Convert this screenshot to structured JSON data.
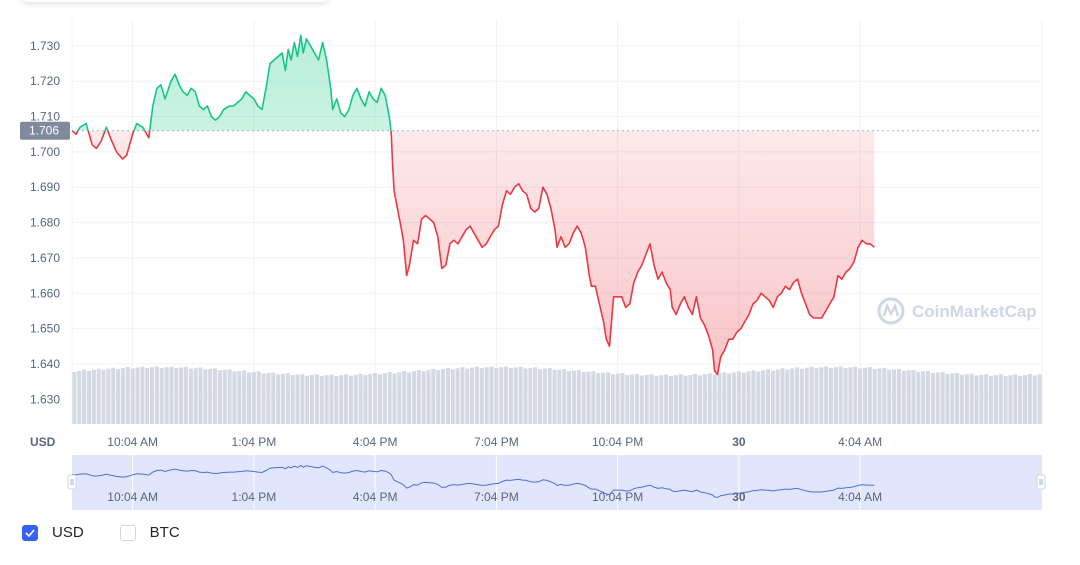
{
  "chart_data": {
    "type": "area",
    "y_ticks": [
      "1.730",
      "1.720",
      "1.710",
      "1.700",
      "1.690",
      "1.680",
      "1.670",
      "1.660",
      "1.650",
      "1.640",
      "1.630"
    ],
    "y_tick_values": [
      1.73,
      1.72,
      1.71,
      1.7,
      1.69,
      1.68,
      1.67,
      1.66,
      1.65,
      1.64,
      1.63
    ],
    "ylim": [
      1.623,
      1.7345
    ],
    "baseline": 1.706,
    "baseline_label": "1.706",
    "unit_label": "USD",
    "x_ticks": [
      {
        "label": "10:04 AM",
        "t": 1.5,
        "bold": false
      },
      {
        "label": "1:04 PM",
        "t": 4.5,
        "bold": false
      },
      {
        "label": "4:04 PM",
        "t": 7.5,
        "bold": false
      },
      {
        "label": "7:04 PM",
        "t": 10.5,
        "bold": false
      },
      {
        "label": "10:04 PM",
        "t": 13.5,
        "bold": false
      },
      {
        "label": "30",
        "t": 16.5,
        "bold": true
      },
      {
        "label": "4:04 AM",
        "t": 19.5,
        "bold": false
      }
    ],
    "xlim": [
      0,
      24
    ],
    "series": [
      {
        "up_color": "#16c784",
        "down_color": "#ea3943",
        "points": [
          [
            0.0,
            1.706
          ],
          [
            0.1,
            1.705
          ],
          [
            0.2,
            1.707
          ],
          [
            0.35,
            1.708
          ],
          [
            0.5,
            1.702
          ],
          [
            0.6,
            1.701
          ],
          [
            0.72,
            1.703
          ],
          [
            0.85,
            1.707
          ],
          [
            0.95,
            1.704
          ],
          [
            1.1,
            1.7
          ],
          [
            1.25,
            1.698
          ],
          [
            1.35,
            1.699
          ],
          [
            1.5,
            1.705
          ],
          [
            1.6,
            1.708
          ],
          [
            1.75,
            1.707
          ],
          [
            1.9,
            1.704
          ],
          [
            2.0,
            1.713
          ],
          [
            2.1,
            1.718
          ],
          [
            2.2,
            1.719
          ],
          [
            2.3,
            1.715
          ],
          [
            2.45,
            1.72
          ],
          [
            2.55,
            1.722
          ],
          [
            2.65,
            1.719
          ],
          [
            2.75,
            1.717
          ],
          [
            2.85,
            1.716
          ],
          [
            2.95,
            1.718
          ],
          [
            3.05,
            1.717
          ],
          [
            3.15,
            1.713
          ],
          [
            3.25,
            1.712
          ],
          [
            3.35,
            1.713
          ],
          [
            3.45,
            1.71
          ],
          [
            3.55,
            1.709
          ],
          [
            3.65,
            1.71
          ],
          [
            3.75,
            1.712
          ],
          [
            3.9,
            1.713
          ],
          [
            4.0,
            1.713
          ],
          [
            4.1,
            1.714
          ],
          [
            4.2,
            1.715
          ],
          [
            4.3,
            1.717
          ],
          [
            4.4,
            1.716
          ],
          [
            4.5,
            1.715
          ],
          [
            4.6,
            1.713
          ],
          [
            4.7,
            1.712
          ],
          [
            4.8,
            1.718
          ],
          [
            4.9,
            1.725
          ],
          [
            5.0,
            1.726
          ],
          [
            5.1,
            1.727
          ],
          [
            5.2,
            1.728
          ],
          [
            5.28,
            1.723
          ],
          [
            5.35,
            1.729
          ],
          [
            5.42,
            1.726
          ],
          [
            5.5,
            1.731
          ],
          [
            5.58,
            1.727
          ],
          [
            5.66,
            1.733
          ],
          [
            5.72,
            1.728
          ],
          [
            5.8,
            1.732
          ],
          [
            5.9,
            1.73
          ],
          [
            6.0,
            1.728
          ],
          [
            6.1,
            1.726
          ],
          [
            6.2,
            1.731
          ],
          [
            6.3,
            1.726
          ],
          [
            6.4,
            1.718
          ],
          [
            6.45,
            1.712
          ],
          [
            6.55,
            1.715
          ],
          [
            6.65,
            1.711
          ],
          [
            6.75,
            1.71
          ],
          [
            6.85,
            1.712
          ],
          [
            6.95,
            1.716
          ],
          [
            7.05,
            1.718
          ],
          [
            7.15,
            1.715
          ],
          [
            7.25,
            1.713
          ],
          [
            7.35,
            1.717
          ],
          [
            7.45,
            1.715
          ],
          [
            7.55,
            1.714
          ],
          [
            7.65,
            1.718
          ],
          [
            7.75,
            1.716
          ],
          [
            7.85,
            1.71
          ],
          [
            7.9,
            1.705
          ],
          [
            7.93,
            1.697
          ],
          [
            7.97,
            1.689
          ],
          [
            8.05,
            1.684
          ],
          [
            8.12,
            1.68
          ],
          [
            8.2,
            1.675
          ],
          [
            8.28,
            1.665
          ],
          [
            8.35,
            1.668
          ],
          [
            8.45,
            1.675
          ],
          [
            8.55,
            1.674
          ],
          [
            8.65,
            1.681
          ],
          [
            8.75,
            1.682
          ],
          [
            8.85,
            1.681
          ],
          [
            8.95,
            1.68
          ],
          [
            9.05,
            1.676
          ],
          [
            9.15,
            1.667
          ],
          [
            9.25,
            1.668
          ],
          [
            9.35,
            1.674
          ],
          [
            9.45,
            1.675
          ],
          [
            9.55,
            1.674
          ],
          [
            9.65,
            1.676
          ],
          [
            9.75,
            1.678
          ],
          [
            9.85,
            1.679
          ],
          [
            9.95,
            1.677
          ],
          [
            10.05,
            1.675
          ],
          [
            10.15,
            1.673
          ],
          [
            10.25,
            1.674
          ],
          [
            10.35,
            1.676
          ],
          [
            10.45,
            1.678
          ],
          [
            10.55,
            1.679
          ],
          [
            10.65,
            1.685
          ],
          [
            10.75,
            1.689
          ],
          [
            10.85,
            1.688
          ],
          [
            10.95,
            1.69
          ],
          [
            11.05,
            1.691
          ],
          [
            11.15,
            1.689
          ],
          [
            11.25,
            1.688
          ],
          [
            11.35,
            1.684
          ],
          [
            11.45,
            1.683
          ],
          [
            11.55,
            1.684
          ],
          [
            11.65,
            1.69
          ],
          [
            11.75,
            1.688
          ],
          [
            11.85,
            1.684
          ],
          [
            11.95,
            1.678
          ],
          [
            12.0,
            1.673
          ],
          [
            12.1,
            1.676
          ],
          [
            12.2,
            1.673
          ],
          [
            12.3,
            1.674
          ],
          [
            12.4,
            1.677
          ],
          [
            12.5,
            1.679
          ],
          [
            12.6,
            1.677
          ],
          [
            12.7,
            1.673
          ],
          [
            12.8,
            1.665
          ],
          [
            12.85,
            1.662
          ],
          [
            12.95,
            1.662
          ],
          [
            13.05,
            1.657
          ],
          [
            13.15,
            1.652
          ],
          [
            13.22,
            1.647
          ],
          [
            13.3,
            1.645
          ],
          [
            13.4,
            1.659
          ],
          [
            13.5,
            1.659
          ],
          [
            13.6,
            1.659
          ],
          [
            13.7,
            1.656
          ],
          [
            13.8,
            1.657
          ],
          [
            13.9,
            1.663
          ],
          [
            14.0,
            1.666
          ],
          [
            14.1,
            1.668
          ],
          [
            14.2,
            1.671
          ],
          [
            14.3,
            1.674
          ],
          [
            14.4,
            1.668
          ],
          [
            14.5,
            1.664
          ],
          [
            14.6,
            1.666
          ],
          [
            14.7,
            1.663
          ],
          [
            14.8,
            1.661
          ],
          [
            14.85,
            1.656
          ],
          [
            14.95,
            1.654
          ],
          [
            15.05,
            1.657
          ],
          [
            15.15,
            1.659
          ],
          [
            15.25,
            1.656
          ],
          [
            15.35,
            1.654
          ],
          [
            15.45,
            1.659
          ],
          [
            15.55,
            1.653
          ],
          [
            15.65,
            1.651
          ],
          [
            15.75,
            1.648
          ],
          [
            15.85,
            1.644
          ],
          [
            15.9,
            1.638
          ],
          [
            15.97,
            1.637
          ],
          [
            16.05,
            1.642
          ],
          [
            16.15,
            1.644
          ],
          [
            16.25,
            1.647
          ],
          [
            16.35,
            1.647
          ],
          [
            16.45,
            1.649
          ],
          [
            16.55,
            1.65
          ],
          [
            16.65,
            1.652
          ],
          [
            16.75,
            1.654
          ],
          [
            16.85,
            1.657
          ],
          [
            16.95,
            1.658
          ],
          [
            17.05,
            1.66
          ],
          [
            17.15,
            1.659
          ],
          [
            17.25,
            1.658
          ],
          [
            17.35,
            1.656
          ],
          [
            17.45,
            1.659
          ],
          [
            17.55,
            1.66
          ],
          [
            17.65,
            1.662
          ],
          [
            17.75,
            1.661
          ],
          [
            17.85,
            1.663
          ],
          [
            17.95,
            1.664
          ],
          [
            18.05,
            1.66
          ],
          [
            18.15,
            1.657
          ],
          [
            18.25,
            1.654
          ],
          [
            18.35,
            1.653
          ],
          [
            18.45,
            1.653
          ],
          [
            18.55,
            1.653
          ],
          [
            18.65,
            1.655
          ],
          [
            18.75,
            1.657
          ],
          [
            18.85,
            1.659
          ],
          [
            18.95,
            1.665
          ],
          [
            19.05,
            1.664
          ],
          [
            19.15,
            1.666
          ],
          [
            19.25,
            1.667
          ],
          [
            19.35,
            1.669
          ],
          [
            19.45,
            1.673
          ],
          [
            19.55,
            1.675
          ],
          [
            19.65,
            1.674
          ],
          [
            19.75,
            1.674
          ],
          [
            19.85,
            1.673
          ]
        ]
      }
    ],
    "volume": {
      "color": "#d4d9e3",
      "bars": 200,
      "level_share": 0.92
    },
    "navigator": {
      "x_ticks": [
        "10:04 AM",
        "1:04 PM",
        "4:04 PM",
        "7:04 PM",
        "10:04 PM",
        "30",
        "4:04 AM"
      ]
    },
    "watermark": "CoinMarketCap",
    "legend": [
      {
        "label": "USD",
        "checked": true
      },
      {
        "label": "BTC",
        "checked": false
      }
    ]
  },
  "colors": {
    "grid": "#eff2f5",
    "axis_text": "#58667e",
    "nav_fill": "#e1e6fd",
    "nav_line": "#4a72d0",
    "accent": "#3861fb"
  }
}
